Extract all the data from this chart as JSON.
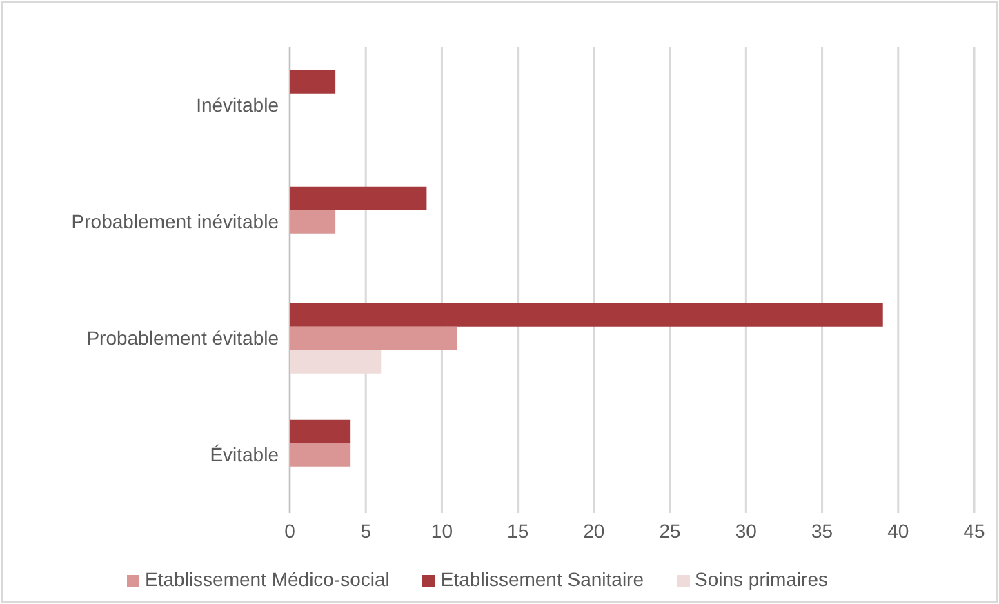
{
  "chart_data": {
    "type": "bar",
    "orientation": "horizontal",
    "categories": [
      "Inévitable",
      "Probablement inévitable",
      "Probablement évitable",
      "Évitable"
    ],
    "series": [
      {
        "name": "Etablissement Sanitaire",
        "color": "#a5393c",
        "values": [
          3,
          9,
          39,
          4
        ]
      },
      {
        "name": "Etablissement Médico-social",
        "color": "#d99694",
        "values": [
          null,
          3,
          11,
          4
        ]
      },
      {
        "name": "Soins primaires",
        "color": "#f0dbdb",
        "values": [
          null,
          null,
          6,
          null
        ]
      }
    ],
    "xlim": [
      0,
      45
    ],
    "xticks": [
      0,
      5,
      10,
      15,
      20,
      25,
      30,
      35,
      40,
      45
    ],
    "grid": "x",
    "legend": "bottom"
  }
}
